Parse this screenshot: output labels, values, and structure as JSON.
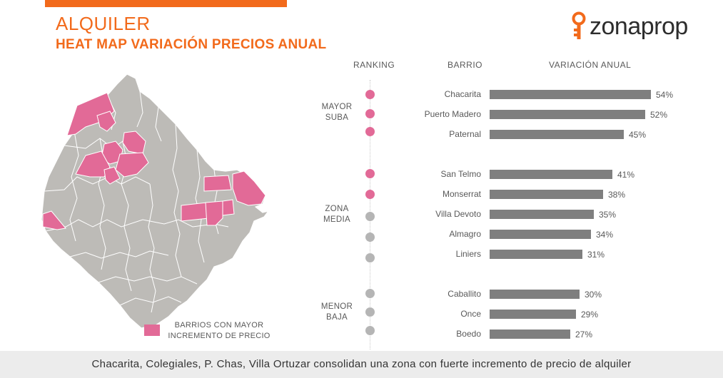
{
  "header": {
    "title": "ALQUILER",
    "subtitle": "HEAT MAP VARIACIÓN PRECIOS ANUAL"
  },
  "brand": {
    "name": "zonaprop",
    "icon": "key-pin-icon",
    "color": "#f26a1b"
  },
  "map": {
    "legend_label": "BARRIOS CON MAYOR INCREMENTO DE PRECIO",
    "highlight_color": "#e26a97",
    "base_color": "#bdbbb7"
  },
  "columns": {
    "ranking": "RANKING",
    "barrio": "BARRIO",
    "variacion": "VARIACIÓN ANUAL"
  },
  "groups": {
    "mayor": "MAYOR SUBA",
    "media": "ZONA MEDIA",
    "menor": "MENOR BAJA"
  },
  "chart_data": {
    "type": "bar",
    "orientation": "horizontal",
    "categories": [
      "Chacarita",
      "Puerto Madero",
      "Paternal",
      "San Telmo",
      "Monserrat",
      "Villa Devoto",
      "Almagro",
      "Liniers",
      "Caballito",
      "Once",
      "Boedo"
    ],
    "values": [
      54,
      52,
      45,
      41,
      38,
      35,
      34,
      31,
      30,
      29,
      27
    ],
    "labels": [
      "54%",
      "52%",
      "45%",
      "41%",
      "38%",
      "35%",
      "34%",
      "31%",
      "30%",
      "29%",
      "27%"
    ],
    "highlighted": [
      true,
      true,
      true,
      true,
      true,
      false,
      false,
      false,
      false,
      false,
      false
    ],
    "bar_color": "#7f7f7f",
    "xlim": [
      0,
      54
    ]
  },
  "footer": {
    "text": "Chacarita, Colegiales, P. Chas, Villa Ortuzar consolidan una zona con fuerte incremento de precio de alquiler"
  }
}
